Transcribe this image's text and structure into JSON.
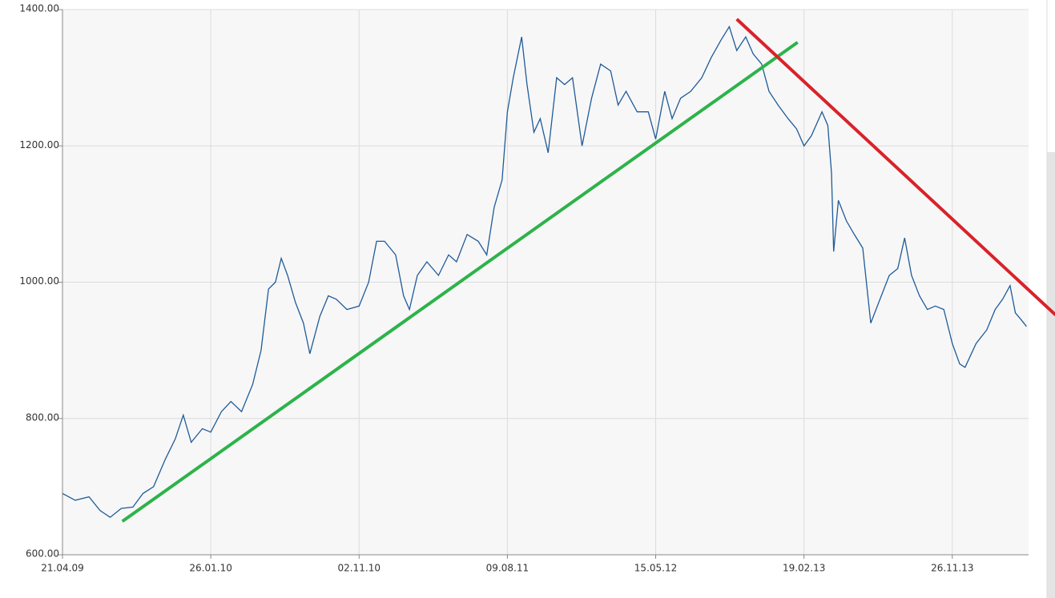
{
  "chart_data": {
    "type": "line",
    "xlim": [
      "2009-04-21",
      "2014-04-19"
    ],
    "ylim": [
      600,
      1400
    ],
    "yticks": [
      {
        "value": 600,
        "label": "600.00"
      },
      {
        "value": 800,
        "label": "800.00"
      },
      {
        "value": 1000,
        "label": "1000.00"
      },
      {
        "value": 1200,
        "label": "1200.00"
      },
      {
        "value": 1400,
        "label": "1400.00"
      }
    ],
    "xticks": [
      {
        "value": "2009-04-21",
        "label": "21.04.09"
      },
      {
        "value": "2010-01-26",
        "label": "26.01.10"
      },
      {
        "value": "2010-11-02",
        "label": "02.11.10"
      },
      {
        "value": "2011-08-09",
        "label": "09.08.11"
      },
      {
        "value": "2012-05-15",
        "label": "15.05.12"
      },
      {
        "value": "2013-02-19",
        "label": "19.02.13"
      },
      {
        "value": "2013-11-26",
        "label": "26.11.13"
      }
    ],
    "grid": true,
    "x": [
      "2009-04-21",
      "2009-05-15",
      "2009-06-10",
      "2009-07-01",
      "2009-07-20",
      "2009-08-10",
      "2009-09-01",
      "2009-09-20",
      "2009-10-10",
      "2009-11-01",
      "2009-11-20",
      "2009-12-05",
      "2009-12-20",
      "2010-01-10",
      "2010-01-26",
      "2010-02-15",
      "2010-03-05",
      "2010-03-25",
      "2010-04-15",
      "2010-05-01",
      "2010-05-15",
      "2010-05-28",
      "2010-06-08",
      "2010-06-20",
      "2010-07-05",
      "2010-07-20",
      "2010-08-01",
      "2010-08-20",
      "2010-09-05",
      "2010-09-20",
      "2010-10-10",
      "2010-11-02",
      "2010-11-20",
      "2010-12-05",
      "2010-12-20",
      "2011-01-10",
      "2011-01-25",
      "2011-02-05",
      "2011-02-20",
      "2011-03-10",
      "2011-04-01",
      "2011-04-20",
      "2011-05-05",
      "2011-05-25",
      "2011-06-15",
      "2011-07-01",
      "2011-07-15",
      "2011-07-30",
      "2011-08-09",
      "2011-08-20",
      "2011-09-05",
      "2011-09-15",
      "2011-09-28",
      "2011-10-10",
      "2011-10-25",
      "2011-11-10",
      "2011-11-25",
      "2011-12-10",
      "2011-12-28",
      "2012-01-15",
      "2012-02-01",
      "2012-02-20",
      "2012-03-05",
      "2012-03-20",
      "2012-04-10",
      "2012-05-01",
      "2012-05-15",
      "2012-06-01",
      "2012-06-15",
      "2012-07-01",
      "2012-07-20",
      "2012-08-10",
      "2012-08-28",
      "2012-09-15",
      "2012-10-01",
      "2012-10-15",
      "2012-11-01",
      "2012-11-15",
      "2012-12-01",
      "2012-12-15",
      "2013-01-01",
      "2013-01-20",
      "2013-02-05",
      "2013-02-19",
      "2013-03-05",
      "2013-03-25",
      "2013-04-05",
      "2013-04-12",
      "2013-04-16",
      "2013-04-25",
      "2013-05-10",
      "2013-05-25",
      "2013-06-10",
      "2013-06-25",
      "2013-07-10",
      "2013-07-30",
      "2013-08-15",
      "2013-08-28",
      "2013-09-10",
      "2013-09-25",
      "2013-10-10",
      "2013-10-25",
      "2013-11-10",
      "2013-11-26",
      "2013-12-10",
      "2013-12-20",
      "2014-01-10",
      "2014-01-30",
      "2014-02-15",
      "2014-03-01",
      "2014-03-15",
      "2014-03-25",
      "2014-04-05",
      "2014-04-15"
    ],
    "series": [
      {
        "color": "#1f5b99",
        "values": [
          690,
          680,
          685,
          665,
          655,
          668,
          670,
          690,
          700,
          740,
          770,
          805,
          765,
          785,
          780,
          810,
          825,
          810,
          850,
          900,
          990,
          1000,
          1035,
          1010,
          970,
          940,
          895,
          950,
          980,
          975,
          960,
          965,
          1000,
          1060,
          1060,
          1040,
          980,
          960,
          1010,
          1030,
          1010,
          1040,
          1030,
          1070,
          1060,
          1040,
          1110,
          1150,
          1250,
          1300,
          1360,
          1290,
          1220,
          1240,
          1190,
          1300,
          1290,
          1300,
          1200,
          1270,
          1320,
          1310,
          1260,
          1280,
          1250,
          1250,
          1210,
          1280,
          1240,
          1270,
          1280,
          1300,
          1330,
          1355,
          1375,
          1340,
          1360,
          1335,
          1320,
          1280,
          1260,
          1240,
          1225,
          1200,
          1215,
          1250,
          1230,
          1160,
          1045,
          1120,
          1090,
          1070,
          1050,
          940,
          970,
          1010,
          1020,
          1065,
          1010,
          980,
          960,
          965,
          960,
          910,
          880,
          875,
          910,
          930,
          960,
          975,
          995,
          955,
          945,
          935
        ]
      }
    ],
    "trendlines": [
      {
        "color": "#2db34a",
        "x": [
          "2009-08-12",
          "2013-02-07"
        ],
        "values": [
          649,
          1352
        ]
      },
      {
        "color": "#d9222a",
        "x": [
          "2012-10-15",
          "2014-06-09"
        ],
        "values": [
          1386,
          952
        ]
      }
    ]
  }
}
